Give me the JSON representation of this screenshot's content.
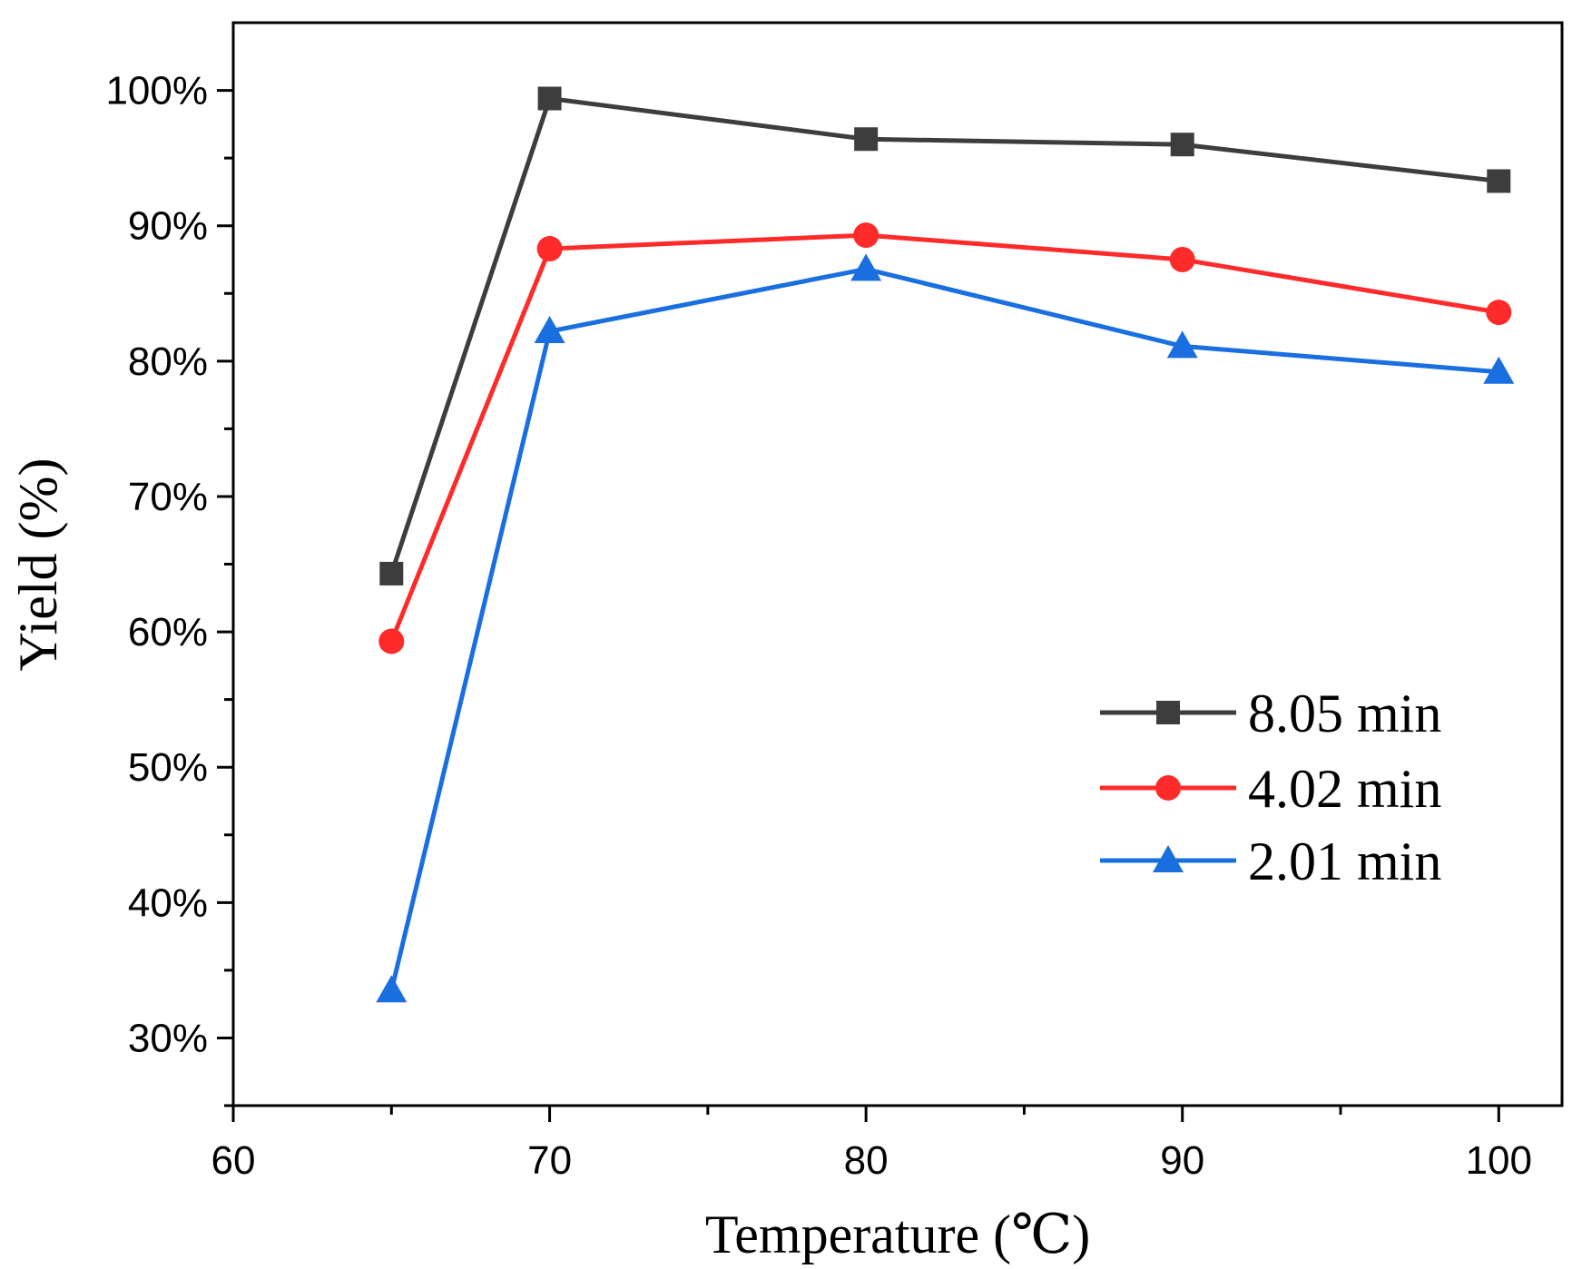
{
  "chart_data": {
    "type": "line",
    "title": "",
    "xlabel": "Temperature (℃)",
    "ylabel": "Yield (%)",
    "xlim": [
      60,
      102
    ],
    "ylim": [
      25,
      105
    ],
    "xticks": [
      60,
      70,
      80,
      90,
      100
    ],
    "xtick_labels": [
      "60",
      "70",
      "80",
      "90",
      "100"
    ],
    "yticks": [
      30,
      40,
      50,
      60,
      70,
      80,
      90,
      100
    ],
    "ytick_labels": [
      "30%",
      "40%",
      "50%",
      "60%",
      "70%",
      "80%",
      "90%",
      "100%"
    ],
    "grid": false,
    "legend_position": "center-right",
    "x": [
      65,
      70,
      80,
      90,
      100
    ],
    "series": [
      {
        "name": "8.05 min",
        "color": "#3d3d3d",
        "marker": "square",
        "values": [
          64.3,
          99.4,
          96.4,
          96.0,
          93.3
        ]
      },
      {
        "name": "4.02 min",
        "color": "#ff2a2a",
        "marker": "circle",
        "values": [
          59.3,
          88.3,
          89.3,
          87.5,
          83.6
        ]
      },
      {
        "name": "2.01 min",
        "color": "#1a6fe0",
        "marker": "triangle",
        "values": [
          33.5,
          82.2,
          86.8,
          81.1,
          79.2
        ]
      }
    ]
  }
}
